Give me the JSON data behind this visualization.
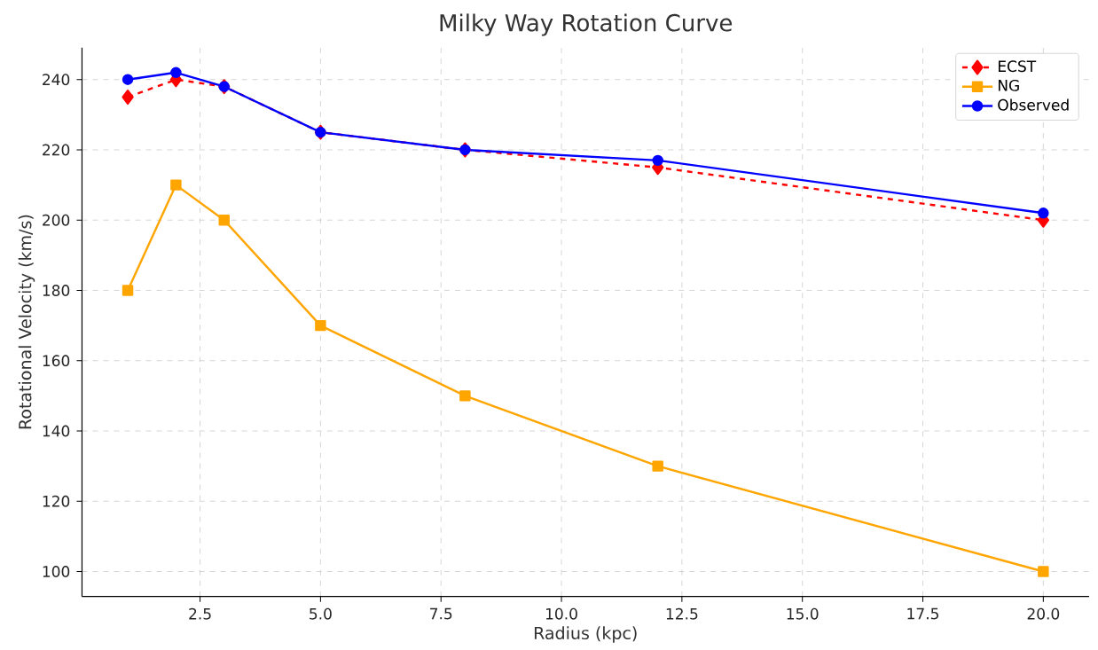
{
  "chart_data": {
    "type": "line",
    "title": "Milky Way Rotation Curve",
    "xlabel": "Radius (kpc)",
    "ylabel": "Rotational Velocity (km/s)",
    "x": [
      1,
      2,
      3,
      5,
      8,
      12,
      20
    ],
    "series": [
      {
        "name": "ECST",
        "color": "#ff0000",
        "values": [
          235,
          240,
          238,
          225,
          220,
          215,
          200
        ],
        "marker": "diamond",
        "line_style": "dashed"
      },
      {
        "name": "NG",
        "color": "#ffa500",
        "values": [
          180,
          210,
          200,
          170,
          150,
          130,
          100
        ],
        "marker": "square",
        "line_style": "solid"
      },
      {
        "name": "Observed",
        "color": "#0000ff",
        "values": [
          240,
          242,
          238,
          225,
          220,
          217,
          202
        ],
        "marker": "circle",
        "line_style": "solid"
      }
    ],
    "xlim": [
      0.05,
      20.95
    ],
    "ylim": [
      92.9,
      249.1
    ],
    "xticks": [
      {
        "value": 2.5,
        "label": "2.5"
      },
      {
        "value": 5,
        "label": "5.0"
      },
      {
        "value": 7.5,
        "label": "7.5"
      },
      {
        "value": 10,
        "label": "10.0"
      },
      {
        "value": 12.5,
        "label": "12.5"
      },
      {
        "value": 15,
        "label": "15.0"
      },
      {
        "value": 17.5,
        "label": "17.5"
      },
      {
        "value": 20,
        "label": "20.0"
      }
    ],
    "yticks": [
      100,
      120,
      140,
      160,
      180,
      200,
      220,
      240
    ],
    "grid": true,
    "legend": "top right"
  }
}
